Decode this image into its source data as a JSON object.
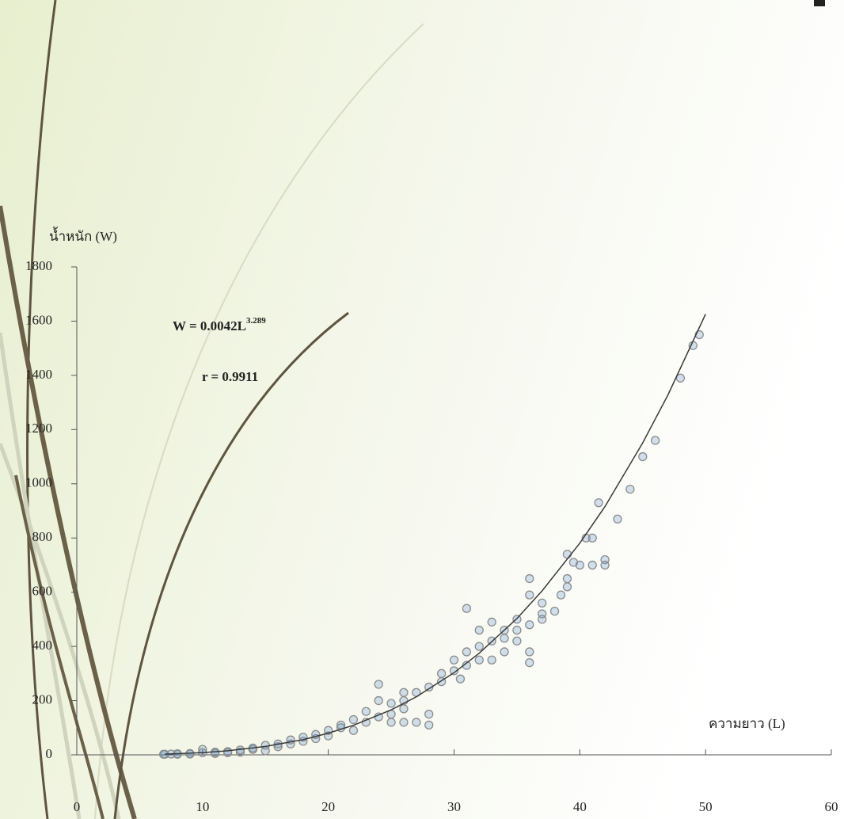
{
  "chart_data": {
    "type": "scatter",
    "ylabel": "น้ำหนัก (W)",
    "xlabel": "ความยาว (L)",
    "annotations": [
      {
        "text": "W = 0.0042L",
        "superscript": "3.289"
      },
      {
        "text": "r = 0.9911"
      }
    ],
    "xlim": [
      0,
      60
    ],
    "ylim": [
      0,
      1800
    ],
    "xticks": [
      0,
      10,
      20,
      30,
      40,
      50,
      60
    ],
    "yticks": [
      0,
      200,
      400,
      600,
      800,
      1000,
      1200,
      1400,
      1600,
      1800
    ],
    "grid": false,
    "series": [
      {
        "kind": "scatter",
        "color": "#8c8c8c",
        "fill": "#4f86c6",
        "x": [
          31,
          36,
          36,
          36,
          36,
          37,
          37,
          38,
          38.5,
          39,
          39,
          39,
          39.5,
          40,
          40.5,
          41,
          41,
          41.5,
          42,
          42,
          43,
          44,
          45,
          46,
          48,
          49,
          49.5,
          35,
          34,
          33,
          33,
          32,
          32,
          35,
          34,
          30,
          29,
          28,
          28,
          27,
          26,
          25,
          24,
          24,
          25,
          26,
          23,
          22,
          21,
          20,
          19,
          18,
          17,
          16,
          15,
          14,
          13,
          12,
          11,
          10,
          9,
          8,
          7,
          7.5,
          29,
          30,
          31,
          30.5,
          27,
          26,
          28,
          33,
          35,
          36,
          37,
          34,
          32,
          31,
          26,
          25,
          24,
          23,
          22,
          21,
          20,
          19,
          18,
          17,
          16,
          15,
          14,
          13,
          12,
          11,
          10,
          9,
          8,
          6.9
        ],
        "values": [
          540,
          650,
          590,
          340,
          380,
          560,
          500,
          530,
          590,
          620,
          650,
          740,
          710,
          700,
          800,
          800,
          700,
          930,
          720,
          700,
          870,
          980,
          1100,
          1160,
          1390,
          1510,
          1550,
          420,
          460,
          490,
          350,
          400,
          460,
          500,
          380,
          350,
          270,
          110,
          150,
          120,
          120,
          120,
          260,
          200,
          150,
          230,
          160,
          90,
          100,
          70,
          60,
          50,
          40,
          30,
          15,
          20,
          10,
          8,
          5,
          20,
          3,
          2,
          2,
          3,
          300,
          310,
          330,
          280,
          230,
          170,
          250,
          420,
          460,
          480,
          520,
          430,
          350,
          380,
          200,
          190,
          140,
          120,
          130,
          110,
          90,
          75,
          65,
          55,
          40,
          35,
          25,
          18,
          12,
          10,
          8,
          5,
          4,
          2
        ]
      },
      {
        "kind": "line",
        "color": "#3a3a3a",
        "x": [
          7,
          10,
          12,
          15,
          18,
          20,
          22,
          25,
          27,
          30,
          32,
          35,
          37,
          40,
          42,
          45,
          47,
          50
        ],
        "values": [
          2.5,
          8.2,
          14.9,
          31,
          56,
          80,
          109,
          166,
          214,
          303,
          375,
          503,
          605,
          781,
          916,
          1151,
          1327,
          1626
        ]
      }
    ]
  }
}
